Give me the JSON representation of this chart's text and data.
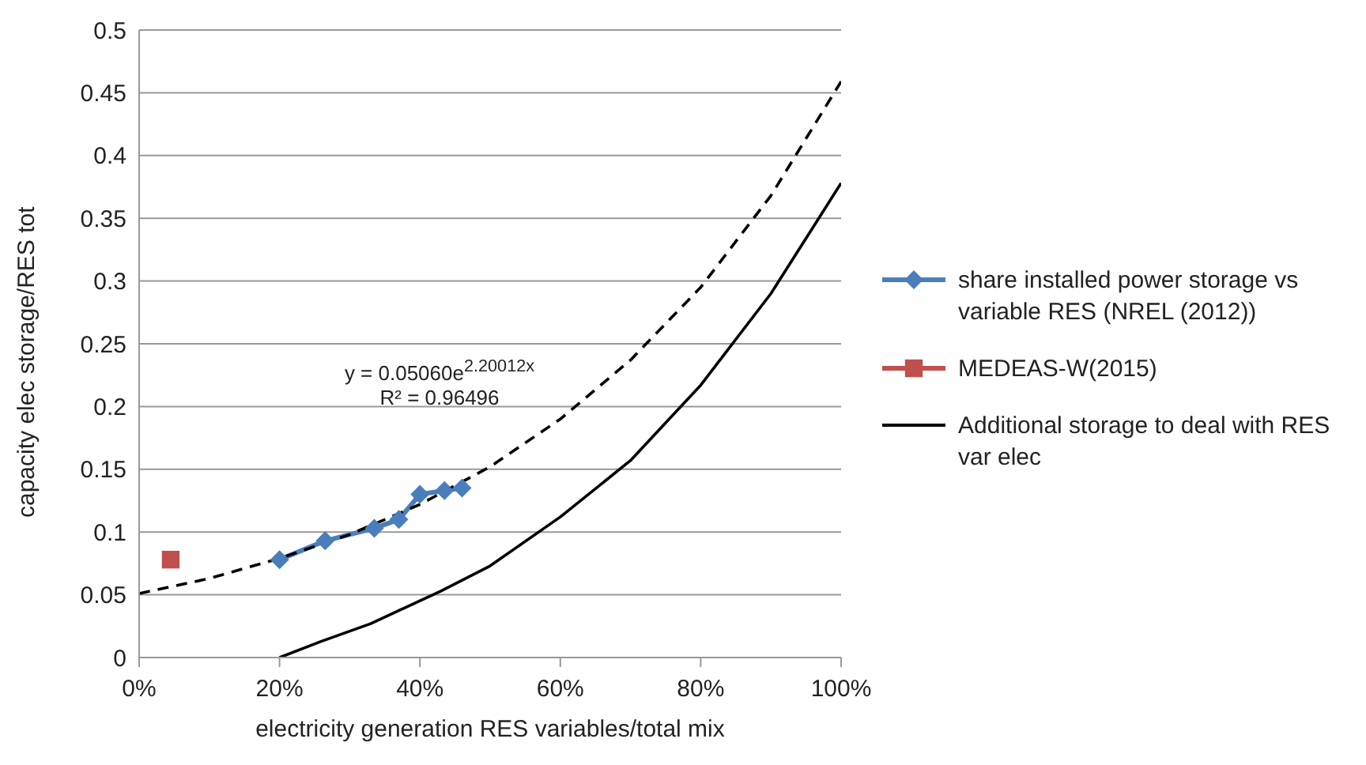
{
  "chart_data": {
    "type": "line",
    "xlabel": "electricity generation RES variables/total mix",
    "ylabel": "capacity elec storage/RES tot",
    "xlim": [
      0,
      1
    ],
    "xticks": [
      {
        "value": 0,
        "label": "0%"
      },
      {
        "value": 0.2,
        "label": "20%"
      },
      {
        "value": 0.4,
        "label": "40%"
      },
      {
        "value": 0.6,
        "label": "60%"
      },
      {
        "value": 0.8,
        "label": "80%"
      },
      {
        "value": 1,
        "label": "100%"
      }
    ],
    "ylim": [
      0,
      0.5
    ],
    "yticks": [
      0,
      0.05,
      0.1,
      0.15,
      0.2,
      0.25,
      0.3,
      0.35,
      0.4,
      0.45,
      0.5
    ],
    "grid": "y",
    "legend": "right",
    "series": [
      {
        "name": "share installed power storage vs variable RES (NREL (2012))",
        "color": "#4a7ebb",
        "marker": "diamond",
        "line_style": "solid",
        "x": [
          0.2,
          0.265,
          0.335,
          0.37,
          0.4,
          0.435,
          0.46
        ],
        "values": [
          0.078,
          0.093,
          0.103,
          0.11,
          0.13,
          0.133,
          0.135
        ]
      },
      {
        "name": "MEDEAS-W(2015)",
        "type": "scatter",
        "color": "#c0504d",
        "marker": "square",
        "x": [
          0.045
        ],
        "values": [
          0.078
        ]
      },
      {
        "name": "Additional storage to deal with RES var elec",
        "color": "#000000",
        "marker": "none",
        "line_style": "solid",
        "x": [
          0.2,
          0.26,
          0.33,
          0.43,
          0.5,
          0.6,
          0.7,
          0.8,
          0.9,
          1
        ],
        "values": [
          0,
          0.013,
          0.027,
          0.053,
          0.073,
          0.112,
          0.157,
          0.217,
          0.29,
          0.378
        ]
      },
      {
        "color": "#000000",
        "marker": "none",
        "line_style": "dashed",
        "x": [
          0,
          0.1,
          0.2,
          0.3,
          0.4,
          0.5,
          0.6,
          0.7,
          0.8,
          0.9,
          1
        ],
        "values": [
          0.051,
          0.063,
          0.079,
          0.098,
          0.122,
          0.152,
          0.19,
          0.237,
          0.295,
          0.368,
          0.459
        ]
      }
    ],
    "annotations": [
      "y = 0.05060e$^{2.20012x}$",
      "R² = 0.96496"
    ]
  }
}
